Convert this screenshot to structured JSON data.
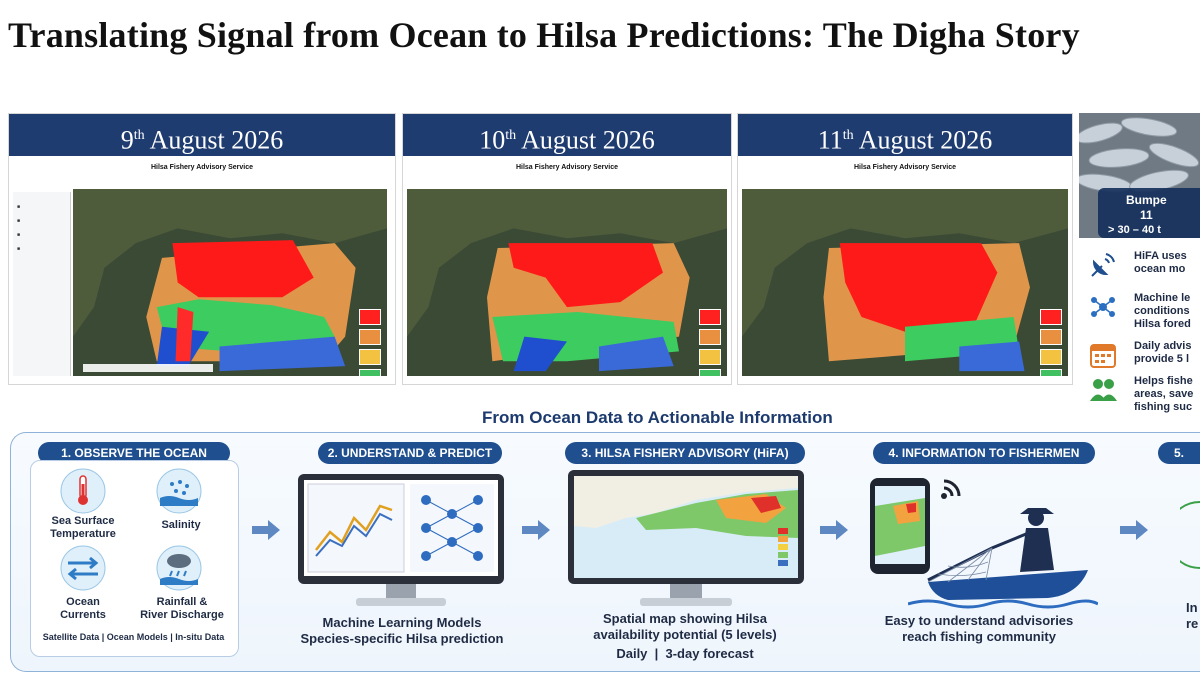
{
  "title": "Translating Signal from Ocean to Hilsa Predictions: The Digha Story",
  "panels": [
    {
      "day": "9",
      "suffix": "th",
      "rest": " August 2026"
    },
    {
      "day": "10",
      "suffix": "th",
      "rest": " August 2026"
    },
    {
      "day": "11",
      "suffix": "th",
      "rest": " August 2026"
    }
  ],
  "mini_header": "Hilsa Fishery Advisory Service",
  "right": {
    "bumper_line1": "Bumpe",
    "bumper_line2": "11",
    "bumper_line3": "> 30 – 40 t",
    "features": [
      {
        "icon": "satellite-dish-icon",
        "text": "HiFA uses\nocean mo"
      },
      {
        "icon": "network-icon",
        "text": "Machine le\nconditions\nHilsa fored"
      },
      {
        "icon": "calendar-icon",
        "text": "Daily advis\nprovide 5 l"
      },
      {
        "icon": "people-icon",
        "text": "Helps fishe\nareas, save\nfishing suc"
      }
    ]
  },
  "infographic": {
    "title": "From Ocean Data to Actionable Information",
    "steps": [
      {
        "label": "1. OBSERVE THE OCEAN"
      },
      {
        "label": "2. UNDERSTAND & PREDICT"
      },
      {
        "label": "3. HILSA FISHERY ADVISORY (HiFA)"
      },
      {
        "label": "4. INFORMATION TO FISHERMEN"
      },
      {
        "label": "5."
      }
    ],
    "observe": {
      "sst": "Sea Surface\nTemperature",
      "salinity": "Salinity",
      "currents": "Ocean\nCurrents",
      "rain": "Rainfall &\nRiver Discharge",
      "footer": "Satellite Data | Ocean Models | In-situ Data"
    },
    "predict_caption": "Machine Learning Models\nSpecies-specific Hilsa prediction",
    "hifa_caption": "Spatial map showing Hilsa\navailability potential (5 levels)",
    "hifa_sub": "Daily  |  3-day forecast",
    "fishermen_caption": "Easy to understand advisories\nreach fishing community",
    "step5_caption": "In\nre"
  }
}
